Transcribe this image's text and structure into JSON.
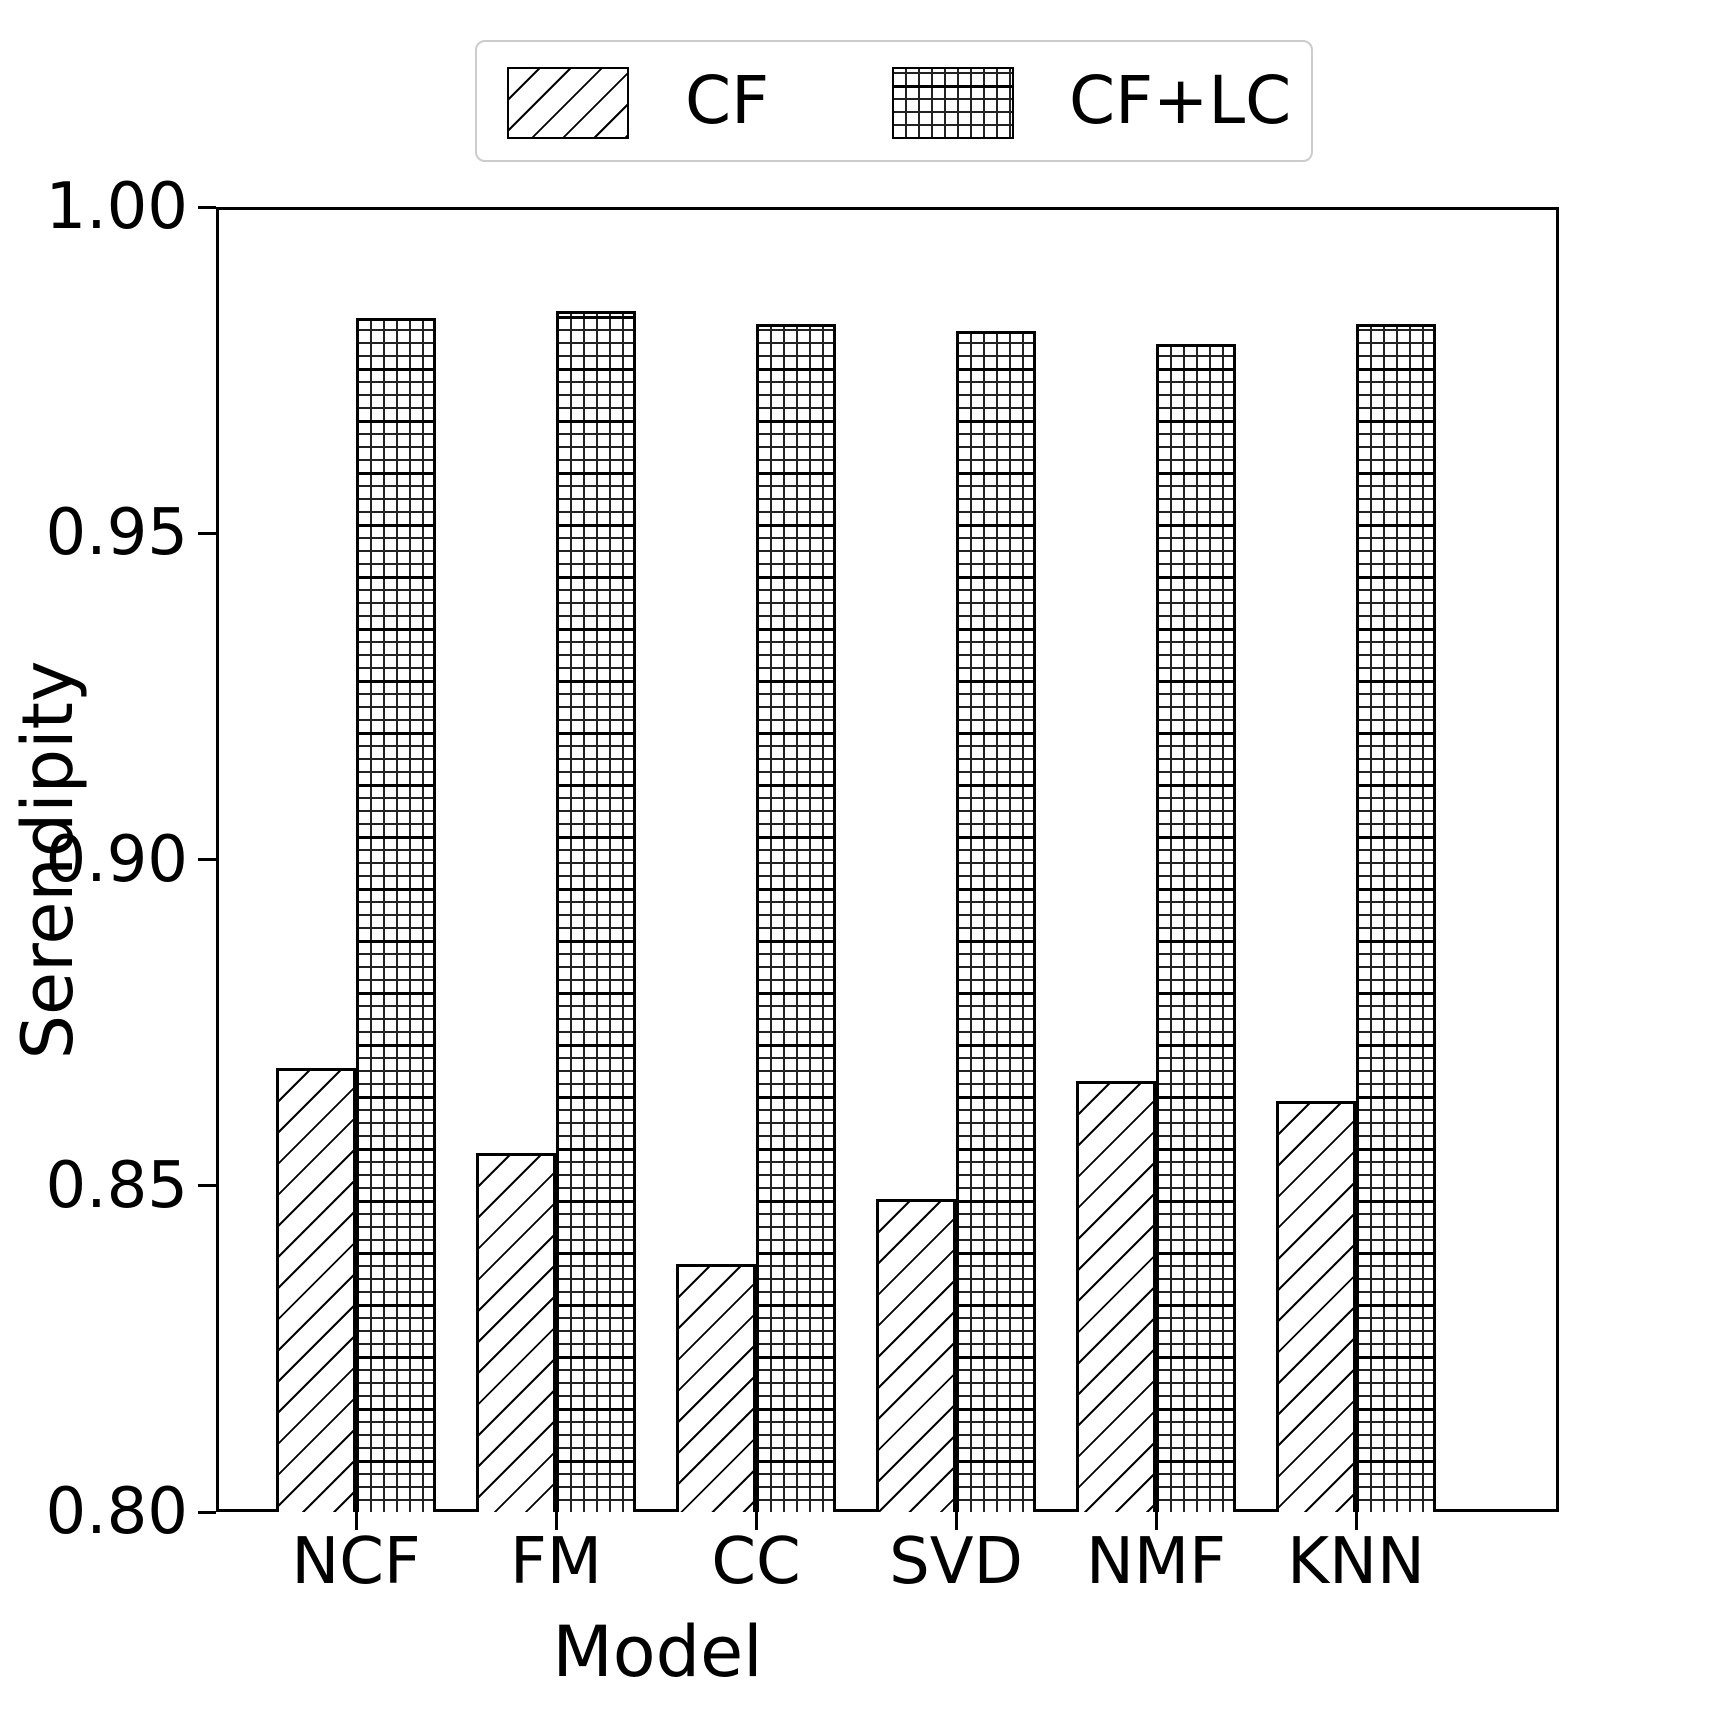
{
  "chart_data": {
    "type": "bar",
    "title": "",
    "categories": [
      "NCF",
      "FM",
      "CC",
      "SVD",
      "NMF",
      "KNN"
    ],
    "series": [
      {
        "name": "CF",
        "hatch": "diagonal",
        "values": [
          0.868,
          0.855,
          0.838,
          0.848,
          0.866,
          0.863
        ]
      },
      {
        "name": "CF+LC",
        "hatch": "grid",
        "values": [
          0.983,
          0.984,
          0.982,
          0.981,
          0.979,
          0.982
        ]
      }
    ],
    "xlabel": "Model",
    "ylabel": "Serendipity",
    "ylim": [
      0.8,
      1.0
    ],
    "yticks": [
      0.8,
      0.85,
      0.9,
      0.95,
      1.0
    ],
    "ytick_format_decimals": 2,
    "grid": false,
    "legend_position": "top",
    "bar_fill_color": "#ffffff",
    "edge_color": "#000000",
    "legend_border_color": "#cccccc"
  },
  "legend": {
    "cf_label": "CF",
    "cflc_label": "CF+LC"
  },
  "axes": {
    "xlabel": "Model",
    "ylabel": "Serendipity"
  }
}
